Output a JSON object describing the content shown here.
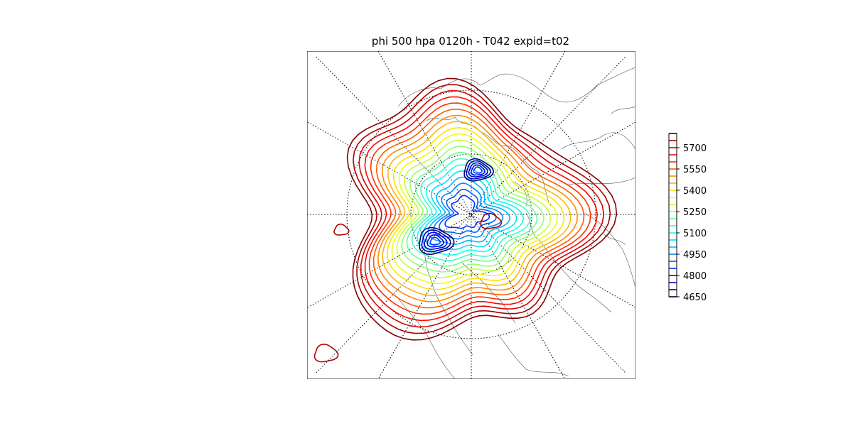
{
  "title": "phi 500 hpa 0120h - T042 expid=t02",
  "map": {
    "projection": "north-polar-stereographic",
    "variable": "phi",
    "level_hpa": 500
  },
  "colorbar": {
    "min": 4650,
    "max": 5800,
    "interval": 50,
    "tick_values": [
      4650,
      4800,
      4950,
      5100,
      5250,
      5400,
      5550,
      5700
    ],
    "tick_labels": [
      "4650",
      "4800",
      "4950",
      "5100",
      "5250",
      "5400",
      "5550",
      "5700"
    ],
    "colormap": "jet"
  },
  "colors": {
    "coast": "#555555",
    "grid": "#000000",
    "low": "#00007f",
    "high": "#7f0000"
  }
}
